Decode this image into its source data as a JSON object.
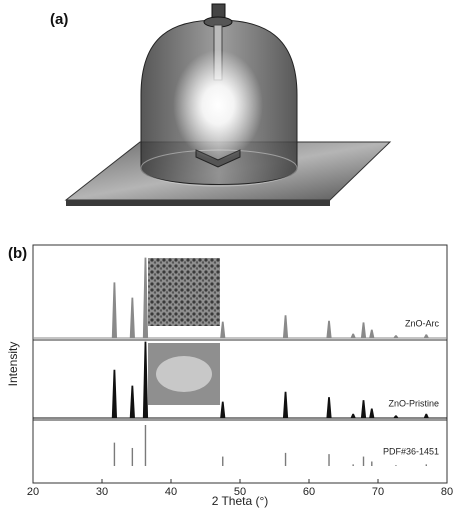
{
  "labels": {
    "a": "(a)",
    "b": "(b)"
  },
  "chart_data": {
    "type": "xrd",
    "x_label": "2 Theta (°)",
    "y_label": "Intensity",
    "xlim": [
      20,
      80
    ],
    "xticks": [
      20,
      30,
      40,
      50,
      60,
      70,
      80
    ],
    "x": [
      31.8,
      34.4,
      36.3,
      47.5,
      56.6,
      62.9,
      66.4,
      67.9,
      69.1,
      72.6,
      77.0
    ],
    "ylim": [
      0,
      100
    ],
    "series": [
      {
        "name": "ZnO-Arc",
        "color": "#8a8a8a",
        "style": "pattern",
        "values": [
          69,
          50,
          100,
          20,
          28,
          21,
          5,
          19,
          10,
          3,
          4
        ]
      },
      {
        "name": "ZnO-Pristine",
        "color": "#111111",
        "style": "pattern",
        "values": [
          63,
          42,
          100,
          21,
          34,
          27,
          5,
          23,
          12,
          3,
          5
        ]
      },
      {
        "name": "PDF#36-1451",
        "color": "#7a7a7a",
        "style": "sticks",
        "values": [
          57,
          44,
          100,
          23,
          32,
          29,
          4,
          23,
          11,
          2,
          4
        ]
      }
    ]
  }
}
